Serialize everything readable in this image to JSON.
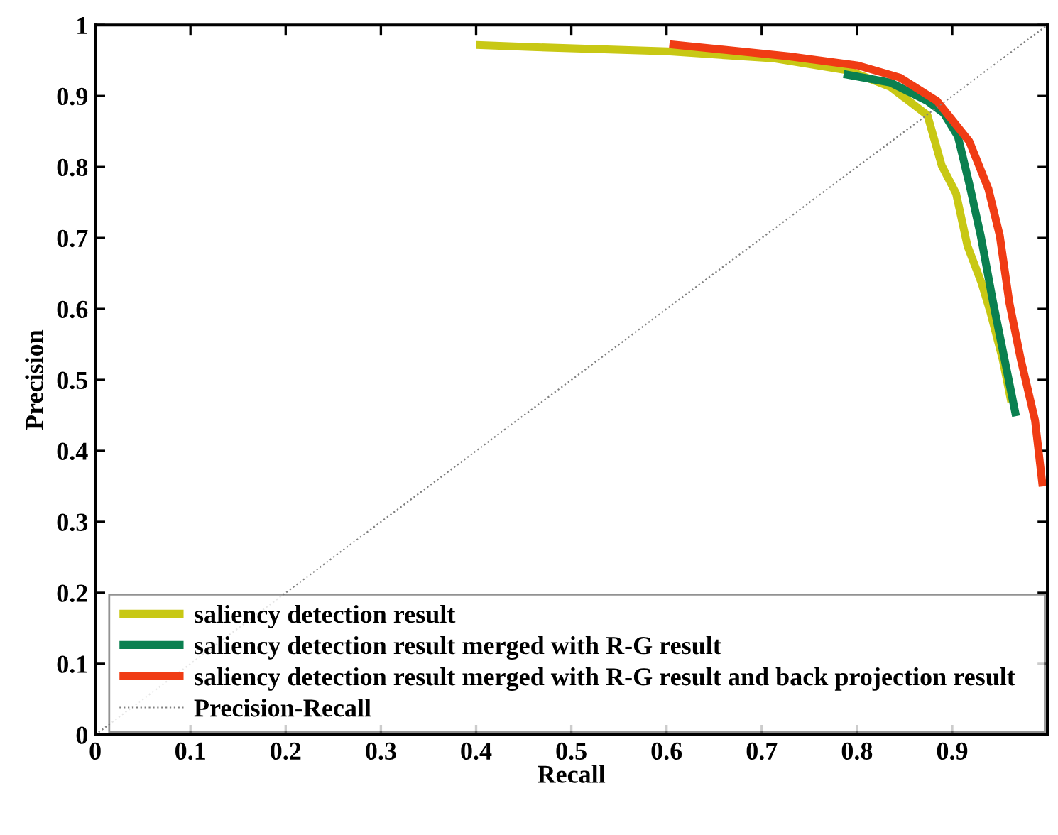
{
  "chart_data": {
    "type": "line",
    "xlabel": "Recall",
    "ylabel": "Precision",
    "xlim": [
      0,
      1
    ],
    "ylim": [
      0,
      1
    ],
    "xticks": [
      0,
      0.1,
      0.2,
      0.3,
      0.4,
      0.5,
      0.6,
      0.7,
      0.8,
      0.9,
      {
        "value": 1,
        "label": null
      }
    ],
    "yticks": [
      0,
      0.1,
      0.2,
      0.3,
      0.4,
      0.5,
      0.6,
      0.7,
      0.8,
      0.9,
      1
    ],
    "grid": false,
    "legend": "bottom",
    "marker": "none",
    "series": [
      {
        "name": "saliency detection result",
        "color": "#c8c814",
        "x": [
          0.4,
          0.459,
          0.601,
          0.713,
          0.791,
          0.835,
          0.874,
          0.889,
          0.904,
          0.916,
          0.931,
          0.94,
          0.953,
          0.962
        ],
        "values": [
          0.972,
          0.969,
          0.963,
          0.953,
          0.936,
          0.913,
          0.873,
          0.802,
          0.763,
          0.689,
          0.636,
          0.596,
          0.529,
          0.469
        ]
      },
      {
        "name": "saliency detection result merged with R-G result",
        "color": "#0a8050",
        "x": [
          0.786,
          0.835,
          0.874,
          0.891,
          0.906,
          0.918,
          0.93,
          0.943,
          0.955,
          0.967
        ],
        "values": [
          0.931,
          0.919,
          0.893,
          0.876,
          0.843,
          0.776,
          0.703,
          0.609,
          0.529,
          0.449
        ]
      },
      {
        "name": "saliency detection result merged with R-G result and back projection result",
        "color": "#f03c14",
        "x": [
          0.603,
          0.728,
          0.801,
          0.845,
          0.884,
          0.918,
          0.938,
          0.95,
          0.96,
          0.972,
          0.987,
          0.995
        ],
        "values": [
          0.973,
          0.956,
          0.943,
          0.926,
          0.893,
          0.836,
          0.769,
          0.703,
          0.609,
          0.529,
          0.443,
          0.35
        ]
      },
      {
        "name": "Precision-Recall",
        "color": "#808080",
        "line_style": "dotted",
        "x": [
          0,
          1
        ],
        "values": [
          0,
          1
        ]
      }
    ]
  }
}
